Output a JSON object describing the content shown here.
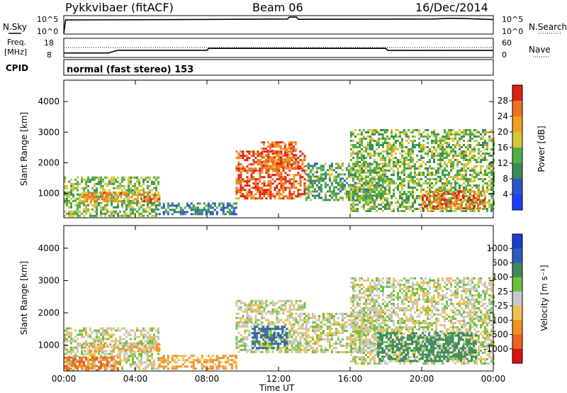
{
  "header": {
    "station": "Pykkvibaer (fitACF)",
    "beam": "Beam 06",
    "date": "16/Dec/2014"
  },
  "nsky_panel": {
    "left_label": "N.Sky",
    "tick_top": "10^5",
    "tick_bottom": "10^0",
    "right_tick_top": "10^5",
    "right_tick_bottom": "10^0",
    "right_label": "N.Search"
  },
  "freq_panel": {
    "left_label_1": "Freq.",
    "left_label_2": "[MHz]",
    "left_tick_top": "18",
    "left_tick_bottom": "8",
    "right_tick_top": "60",
    "right_tick_bottom": "0",
    "right_label": "Nave"
  },
  "cpid_panel": {
    "left_label": "CPID",
    "text": "normal (fast stereo) 153"
  },
  "power_panel": {
    "ylabel": "Slant Range [km]",
    "yticks": [
      "1000",
      "2000",
      "3000",
      "4000"
    ],
    "colorbar_label": "Power [dB]",
    "colorbar_ticks": [
      "4",
      "8",
      "12",
      "16",
      "20",
      "24",
      "28"
    ],
    "colorbar_colors": [
      "#1f3cff",
      "#2f56c8",
      "#3a8a5a",
      "#4fb04a",
      "#d6c63a",
      "#f0a020",
      "#f07020",
      "#e02010"
    ]
  },
  "velocity_panel": {
    "ylabel": "Slant Range [km]",
    "yticks": [
      "1000",
      "2000",
      "3000",
      "4000"
    ],
    "colorbar_label": "Velocity [m s⁻¹]",
    "colorbar_ticks": [
      "1000",
      "500",
      "100",
      "25",
      "-25",
      "-100",
      "-500",
      "-1000"
    ],
    "colorbar_colors": [
      "#1c3cd0",
      "#2f5bc0",
      "#3a8a5a",
      "#6cc040",
      "#c8c8c8",
      "#f0c050",
      "#f09020",
      "#f06020",
      "#e01010"
    ]
  },
  "xaxis": {
    "label": "Time UT",
    "ticks": [
      "00:00",
      "04:00",
      "08:00",
      "12:00",
      "16:00",
      "20:00",
      "00:00"
    ]
  },
  "chart_data": [
    {
      "type": "line",
      "title": "N.Sky",
      "x_hours": [
        0,
        0.1,
        6.5,
        12.5,
        12.6,
        12.8,
        13.0,
        13.1,
        20.6,
        21.5,
        22.6,
        24
      ],
      "y_log10": [
        0,
        4.3,
        4.4,
        4.6,
        5.2,
        5.2,
        5.2,
        4.5,
        4.6,
        4.8,
        4.7,
        4.4
      ],
      "ylim": [
        0,
        5
      ]
    },
    {
      "type": "line",
      "title": "Freq.",
      "x_hours": [
        0,
        2.5,
        3.0,
        8.0,
        8.1,
        18.0,
        18.1,
        24
      ],
      "y_mhz": [
        10.2,
        10.2,
        11.8,
        11.8,
        12.9,
        12.9,
        11.7,
        11.7
      ],
      "ylim": [
        8,
        18
      ]
    },
    {
      "type": "heatmap",
      "title": "Power",
      "xlabel": "Time UT",
      "ylabel": "Slant Range [km]",
      "xlim": [
        0,
        24
      ],
      "ylim": [
        200,
        4700
      ],
      "zlim_db": [
        0,
        30
      ],
      "regions": [
        {
          "t": [
            0.0,
            5.3
          ],
          "r": [
            250,
            1550
          ],
          "db": 14
        },
        {
          "t": [
            1.0,
            5.3
          ],
          "r": [
            750,
            1050
          ],
          "db": 22
        },
        {
          "t": [
            5.3,
            9.6
          ],
          "r": [
            300,
            700
          ],
          "db": 8
        },
        {
          "t": [
            9.6,
            13.5
          ],
          "r": [
            800,
            2400
          ],
          "db": 26
        },
        {
          "t": [
            11.0,
            13.0
          ],
          "r": [
            1800,
            2700
          ],
          "db": 24
        },
        {
          "t": [
            13.5,
            18.0
          ],
          "r": [
            800,
            2000
          ],
          "db": 12
        },
        {
          "t": [
            16.0,
            24.0
          ],
          "r": [
            400,
            3100
          ],
          "db": 14
        },
        {
          "t": [
            20.0,
            23.5
          ],
          "r": [
            500,
            1100
          ],
          "db": 24
        }
      ]
    },
    {
      "type": "heatmap",
      "title": "Velocity",
      "xlabel": "Time UT",
      "ylabel": "Slant Range [km]",
      "xlim": [
        0,
        24
      ],
      "ylim": [
        200,
        4700
      ],
      "zlim_ms": [
        -1000,
        1000
      ],
      "regions": [
        {
          "t": [
            0.0,
            5.3
          ],
          "r": [
            250,
            1550
          ],
          "v": 0
        },
        {
          "t": [
            1.0,
            5.3
          ],
          "r": [
            800,
            1050
          ],
          "v": -60
        },
        {
          "t": [
            0.0,
            3.0
          ],
          "r": [
            250,
            650
          ],
          "v": -300
        },
        {
          "t": [
            5.3,
            9.6
          ],
          "r": [
            300,
            700
          ],
          "v": -80
        },
        {
          "t": [
            9.6,
            13.5
          ],
          "r": [
            800,
            2400
          ],
          "v": 0
        },
        {
          "t": [
            10.5,
            12.5
          ],
          "r": [
            900,
            1600
          ],
          "v": 300
        },
        {
          "t": [
            13.5,
            18.0
          ],
          "r": [
            800,
            2000
          ],
          "v": 0
        },
        {
          "t": [
            16.0,
            24.0
          ],
          "r": [
            400,
            3100
          ],
          "v": 0
        },
        {
          "t": [
            17.5,
            23.0
          ],
          "r": [
            500,
            1400
          ],
          "v": 150
        }
      ]
    }
  ]
}
